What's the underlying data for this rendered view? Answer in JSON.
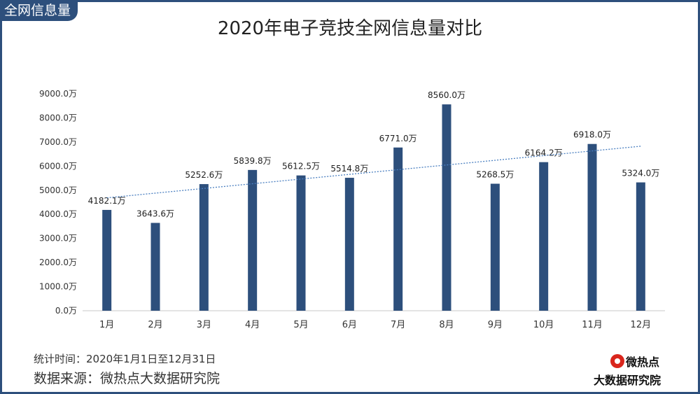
{
  "header": {
    "tag": "全网信息量",
    "title": "2020年电子竞技全网信息量对比"
  },
  "footer": {
    "period": "统计时间：2020年1月1日至12月31日",
    "source": "数据来源：微热点大数据研究院"
  },
  "logo": {
    "line1": "微热点",
    "line2": "大数据研究院"
  },
  "chart_data": {
    "type": "bar",
    "title": "2020年电子竞技全网信息量对比",
    "categories": [
      "1月",
      "2月",
      "3月",
      "4月",
      "5月",
      "6月",
      "7月",
      "8月",
      "9月",
      "10月",
      "11月",
      "12月"
    ],
    "values": [
      4182.1,
      3643.6,
      5252.6,
      5839.8,
      5612.5,
      5514.8,
      6771.0,
      8560.0,
      5268.5,
      6164.2,
      6918.0,
      5324.0
    ],
    "value_labels": [
      "4182.1万",
      "3643.6万",
      "5252.6万",
      "5839.8万",
      "5612.5万",
      "5514.8万",
      "6771.0万",
      "8560.0万",
      "5268.5万",
      "6164.2万",
      "6918.0万",
      "5324.0万"
    ],
    "yticks": [
      "0.0万",
      "1000.0万",
      "2000.0万",
      "3000.0万",
      "4000.0万",
      "5000.0万",
      "6000.0万",
      "7000.0万",
      "8000.0万",
      "9000.0万"
    ],
    "ylim": [
      0,
      9000
    ],
    "trendline": "linear",
    "grid": false,
    "legend": "none",
    "colors": {
      "bar": "#2d4f7c",
      "trend": "#4a7fc0",
      "axis": "#c8c8c8",
      "frame": "#2d4f7c"
    }
  }
}
